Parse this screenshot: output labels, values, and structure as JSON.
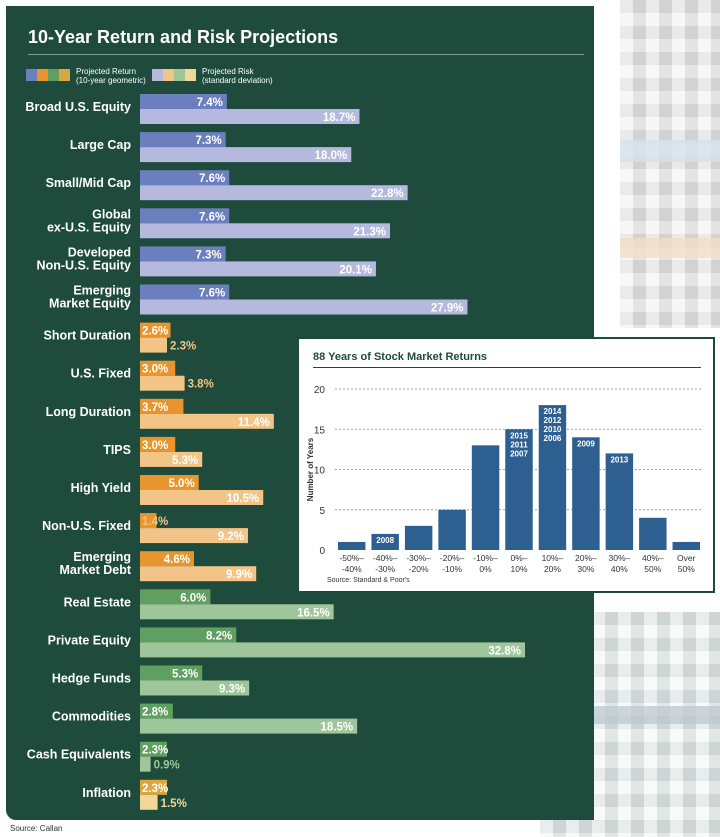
{
  "chart_data": [
    {
      "type": "bar",
      "orientation": "horizontal",
      "title": "10-Year Return and Risk Projections",
      "xlim": [
        0,
        32.8
      ],
      "legend": [
        {
          "name": "Projected Return",
          "note": "(10-year geometric)"
        },
        {
          "name": "Projected Risk",
          "note": "(standard deviation)"
        }
      ],
      "categories": [
        "Broad U.S. Equity",
        "Large Cap",
        "Small/Mid Cap",
        "Global\nex-U.S. Equity",
        "Developed\nNon-U.S. Equity",
        "Emerging\nMarket Equity",
        "Short Duration",
        "U.S. Fixed",
        "Long Duration",
        "TIPS",
        "High Yield",
        "Non-U.S. Fixed",
        "Emerging\nMarket Debt",
        "Real Estate",
        "Private Equity",
        "Hedge Funds",
        "Commodities",
        "Cash Equivalents",
        "Inflation"
      ],
      "series": [
        {
          "name": "Projected Return",
          "values": [
            7.4,
            7.3,
            7.6,
            7.6,
            7.3,
            7.6,
            2.6,
            3.0,
            3.7,
            3.0,
            5.0,
            1.4,
            4.6,
            6.0,
            8.2,
            5.3,
            2.8,
            2.3,
            2.3
          ]
        },
        {
          "name": "Projected Risk",
          "values": [
            18.7,
            18.0,
            22.8,
            21.3,
            20.1,
            27.9,
            2.3,
            3.8,
            11.4,
            5.3,
            10.5,
            9.2,
            9.9,
            16.5,
            32.8,
            9.3,
            18.5,
            0.9,
            1.5
          ]
        }
      ],
      "colors": {
        "return": [
          "#6b7fbf",
          "#6b7fbf",
          "#6b7fbf",
          "#6b7fbf",
          "#6b7fbf",
          "#6b7fbf",
          "#e8952e",
          "#e8952e",
          "#e8952e",
          "#e8952e",
          "#e8952e",
          "#e8952e",
          "#e8952e",
          "#5f9f5f",
          "#5f9f5f",
          "#5f9f5f",
          "#5f9f5f",
          "#5f9f5f",
          "#dba63d"
        ],
        "risk": [
          "#b4b9dd",
          "#b4b9dd",
          "#b4b9dd",
          "#b4b9dd",
          "#b4b9dd",
          "#b4b9dd",
          "#f3c487",
          "#f3c487",
          "#f3c487",
          "#f3c487",
          "#f3c487",
          "#f3c487",
          "#f3c487",
          "#9fc69a",
          "#9fc69a",
          "#9fc69a",
          "#9fc69a",
          "#9fc69a",
          "#efd898"
        ]
      },
      "source": "Source: Callan"
    },
    {
      "type": "bar",
      "title": "88 Years of Stock Market Returns",
      "ylabel": "Number of Years",
      "ylim": [
        0,
        20
      ],
      "yticks": [
        0,
        5,
        10,
        15,
        20
      ],
      "grid": true,
      "categories": [
        [
          "-50%–",
          "-40%"
        ],
        [
          "-40%–",
          "-30%"
        ],
        [
          "-30%–",
          "-20%"
        ],
        [
          "-20%–",
          "-10%"
        ],
        [
          "-10%–",
          "0%"
        ],
        [
          "0%–",
          "10%"
        ],
        [
          "10%–",
          "20%"
        ],
        [
          "20%–",
          "30%"
        ],
        [
          "30%–",
          "40%"
        ],
        [
          "40%–",
          "50%"
        ],
        [
          "Over",
          "50%"
        ]
      ],
      "values": [
        1,
        2,
        3,
        5,
        13,
        15,
        18,
        14,
        12,
        4,
        1
      ],
      "bar_labels": [
        [],
        [
          "2008"
        ],
        [],
        [],
        [],
        [
          "2015",
          "2011",
          "2007"
        ],
        [
          "2014",
          "2012",
          "2010",
          "2006"
        ],
        [
          "2009"
        ],
        [
          "2013"
        ],
        [],
        []
      ],
      "color": "#2d5f91",
      "source": "Source: Standard & Poor's"
    }
  ]
}
